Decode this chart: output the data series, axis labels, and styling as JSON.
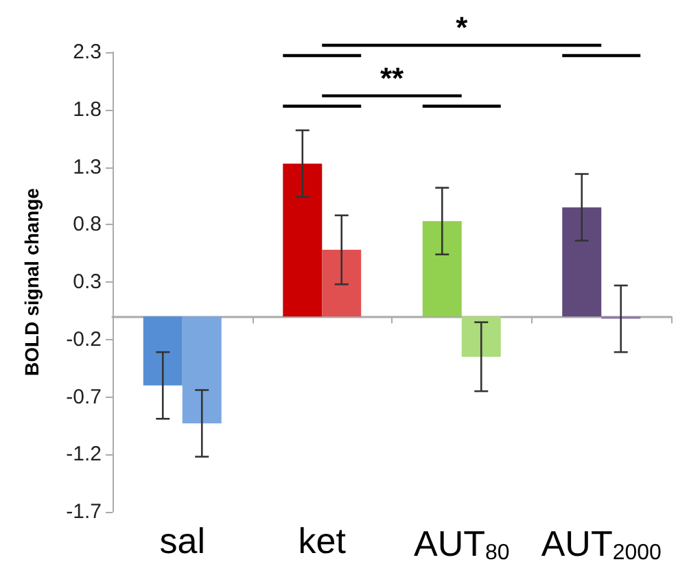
{
  "chart_data": {
    "type": "bar",
    "ylabel": "BOLD signal change",
    "categories": [
      "sal",
      "ket",
      "AUT$_{80}$",
      "AUT$_{2000}$"
    ],
    "series": [
      {
        "colors": [
          "#558ed5",
          "#cc0000",
          "#92d050",
          "#604a7b"
        ],
        "values": [
          -0.6,
          1.33,
          0.83,
          0.95
        ],
        "errors": [
          0.29,
          0.29,
          0.29,
          0.29
        ]
      },
      {
        "colors": [
          "#7aa7e0",
          "#e05050",
          "#addc7c",
          "#8a78a8"
        ],
        "values": [
          -0.93,
          0.58,
          -0.35,
          -0.02
        ],
        "errors": [
          0.29,
          0.3,
          0.3,
          0.29
        ]
      }
    ],
    "ylim": [
      -1.7,
      2.3
    ],
    "yticks": [
      -1.7,
      -1.2,
      -0.7,
      -0.2,
      0.3,
      0.8,
      1.3,
      1.8,
      2.3
    ],
    "grid": false,
    "annotations": [
      "**",
      "*"
    ]
  }
}
